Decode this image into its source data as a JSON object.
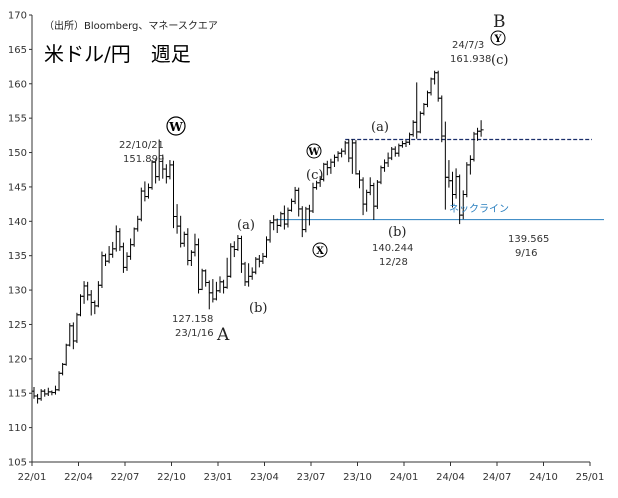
{
  "chart_data": {
    "type": "ohlc",
    "title": "米ドル/円　週足",
    "source": "（出所）Bloomberg、マネースクエア",
    "ylim": [
      105,
      170
    ],
    "yticks": [
      105,
      110,
      115,
      120,
      125,
      130,
      135,
      140,
      145,
      150,
      155,
      160,
      165,
      170
    ],
    "xlim": [
      "22/01",
      "25/01"
    ],
    "xticks": [
      "22/01",
      "22/04",
      "22/07",
      "22/10",
      "23/01",
      "23/04",
      "23/07",
      "23/10",
      "24/01",
      "24/04",
      "24/07",
      "24/10",
      "25/01"
    ],
    "grid": false,
    "series": [
      {
        "values": [
          [
            0,
            115.3,
            115.9,
            114.2,
            114.6
          ],
          [
            1,
            114.6,
            114.9,
            113.5,
            114.2
          ],
          [
            2,
            114.2,
            115.6,
            113.9,
            115.3
          ],
          [
            3,
            115.3,
            115.6,
            114.5,
            114.9
          ],
          [
            4,
            114.9,
            115.8,
            114.6,
            115.2
          ],
          [
            5,
            115.2,
            115.4,
            114.7,
            115.1
          ],
          [
            6,
            115.1,
            116.1,
            114.8,
            115.5
          ],
          [
            7,
            115.5,
            118.2,
            115.3,
            117.9
          ],
          [
            8,
            117.9,
            119.4,
            117.6,
            119.2
          ],
          [
            9,
            119.2,
            122.2,
            119.0,
            122.0
          ],
          [
            10,
            122.0,
            125.2,
            121.8,
            124.8
          ],
          [
            11,
            124.8,
            125.3,
            121.4,
            122.6
          ],
          [
            12,
            122.6,
            126.7,
            122.3,
            126.4
          ],
          [
            13,
            126.4,
            129.4,
            126.2,
            129.1
          ],
          [
            14,
            129.1,
            131.3,
            128.0,
            130.6
          ],
          [
            15,
            130.6,
            131.2,
            128.5,
            129.3
          ],
          [
            16,
            129.3,
            130.0,
            126.3,
            128.2
          ],
          [
            17,
            128.2,
            128.5,
            126.5,
            127.7
          ],
          [
            18,
            127.7,
            131.3,
            127.5,
            130.7
          ],
          [
            19,
            130.7,
            135.6,
            130.3,
            135.0
          ],
          [
            20,
            135.0,
            135.3,
            133.5,
            134.2
          ],
          [
            21,
            134.2,
            136.4,
            133.9,
            135.2
          ],
          [
            22,
            135.2,
            137.0,
            134.7,
            136.0
          ],
          [
            23,
            136.0,
            139.4,
            135.6,
            138.5
          ],
          [
            24,
            138.5,
            139.0,
            135.7,
            136.3
          ],
          [
            25,
            136.3,
            136.9,
            132.5,
            133.3
          ],
          [
            26,
            133.3,
            135.5,
            132.8,
            134.9
          ],
          [
            27,
            134.9,
            137.5,
            134.4,
            136.6
          ],
          [
            28,
            136.6,
            139.1,
            136.3,
            138.9
          ],
          [
            29,
            138.9,
            140.8,
            138.5,
            140.3
          ],
          [
            30,
            140.3,
            144.9,
            140.0,
            144.4
          ],
          [
            31,
            144.4,
            145.8,
            142.9,
            143.6
          ],
          [
            32,
            143.6,
            145.5,
            143.3,
            144.9
          ],
          [
            33,
            144.9,
            148.9,
            144.6,
            148.6
          ],
          [
            34,
            148.6,
            149.0,
            145.5,
            146.5
          ],
          [
            35,
            146.5,
            151.9,
            145.9,
            148.7
          ],
          [
            36,
            148.7,
            149.7,
            146.2,
            147.6
          ],
          [
            37,
            147.6,
            148.3,
            145.5,
            146.5
          ],
          [
            38,
            146.5,
            148.9,
            146.1,
            148.2
          ],
          [
            39,
            148.2,
            148.8,
            139.0,
            140.7
          ],
          [
            40,
            140.7,
            142.5,
            138.2,
            139.3
          ],
          [
            41,
            139.3,
            140.8,
            136.2,
            136.8
          ],
          [
            42,
            136.8,
            138.5,
            136.3,
            138.1
          ],
          [
            43,
            138.1,
            139.0,
            133.6,
            134.3
          ],
          [
            44,
            134.3,
            135.8,
            133.5,
            135.5
          ],
          [
            45,
            135.5,
            138.2,
            134.9,
            136.6
          ],
          [
            46,
            136.6,
            137.5,
            129.5,
            130.1
          ],
          [
            47,
            130.1,
            133.1,
            130.0,
            132.8
          ],
          [
            48,
            132.8,
            133.0,
            130.5,
            131.1
          ],
          [
            49,
            131.1,
            131.4,
            127.2,
            129.6
          ],
          [
            50,
            129.6,
            131.6,
            128.2,
            128.7
          ],
          [
            51,
            128.7,
            131.2,
            128.5,
            129.9
          ],
          [
            52,
            129.9,
            132.0,
            129.6,
            131.2
          ],
          [
            53,
            131.2,
            131.5,
            129.5,
            130.4
          ],
          [
            54,
            130.4,
            134.7,
            130.2,
            132.0
          ],
          [
            55,
            132.0,
            136.8,
            131.8,
            136.3
          ],
          [
            56,
            136.3,
            137.1,
            134.8,
            135.9
          ],
          [
            57,
            135.9,
            138.0,
            135.7,
            137.5
          ],
          [
            58,
            137.5,
            137.9,
            132.5,
            133.8
          ],
          [
            59,
            133.8,
            134.1,
            130.6,
            131.2
          ],
          [
            60,
            131.2,
            133.9,
            130.5,
            132.0
          ],
          [
            61,
            132.0,
            133.3,
            131.5,
            132.6
          ],
          [
            62,
            132.6,
            134.8,
            132.3,
            134.5
          ],
          [
            63,
            134.5,
            135.1,
            133.3,
            134.2
          ],
          [
            64,
            134.2,
            135.4,
            133.8,
            134.9
          ],
          [
            65,
            134.9,
            137.8,
            134.7,
            137.3
          ],
          [
            66,
            137.3,
            140.2,
            136.9,
            139.8
          ],
          [
            67,
            139.8,
            140.9,
            138.7,
            140.2
          ],
          [
            68,
            140.2,
            140.4,
            138.3,
            139.4
          ],
          [
            69,
            139.4,
            141.4,
            139.2,
            141.1
          ],
          [
            70,
            141.1,
            142.3,
            138.8,
            139.6
          ],
          [
            71,
            139.6,
            142.0,
            139.1,
            141.6
          ],
          [
            72,
            141.6,
            143.3,
            141.4,
            142.9
          ],
          [
            73,
            142.9,
            145.0,
            142.5,
            144.5
          ],
          [
            74,
            144.5,
            144.9,
            140.7,
            141.8
          ],
          [
            75,
            141.8,
            142.2,
            137.7,
            138.8
          ],
          [
            76,
            138.8,
            142.1,
            138.4,
            141.8
          ],
          [
            77,
            141.8,
            142.4,
            139.4,
            141.5
          ],
          [
            78,
            141.5,
            145.6,
            141.2,
            144.9
          ],
          [
            79,
            144.9,
            145.9,
            144.6,
            145.6
          ],
          [
            80,
            145.6,
            146.6,
            145.0,
            146.1
          ],
          [
            81,
            146.1,
            148.5,
            145.8,
            148.3
          ],
          [
            82,
            148.3,
            148.8,
            146.7,
            147.8
          ],
          [
            83,
            147.8,
            149.1,
            146.9,
            148.6
          ],
          [
            84,
            148.6,
            149.7,
            147.9,
            149.3
          ],
          [
            85,
            149.3,
            150.2,
            148.7,
            149.9
          ],
          [
            86,
            149.9,
            150.6,
            149.3,
            150.2
          ],
          [
            87,
            150.2,
            151.7,
            149.7,
            151.4
          ],
          [
            88,
            151.4,
            151.9,
            148.6,
            149.2
          ],
          [
            89,
            149.2,
            151.9,
            146.9,
            151.4
          ],
          [
            90,
            151.4,
            151.8,
            146.8,
            146.9
          ],
          [
            91,
            146.9,
            147.4,
            144.8,
            146.0
          ],
          [
            92,
            146.0,
            146.4,
            140.9,
            142.5
          ],
          [
            93,
            142.5,
            144.6,
            141.4,
            144.2
          ],
          [
            94,
            144.2,
            146.4,
            143.8,
            145.2
          ],
          [
            95,
            145.2,
            145.6,
            140.2,
            142.2
          ],
          [
            96,
            142.2,
            146.0,
            141.8,
            145.7
          ],
          [
            97,
            145.7,
            148.1,
            145.4,
            147.8
          ],
          [
            98,
            147.8,
            149.0,
            147.2,
            148.5
          ],
          [
            99,
            148.5,
            150.0,
            147.9,
            149.2
          ],
          [
            100,
            149.2,
            150.8,
            148.9,
            150.5
          ],
          [
            101,
            150.5,
            150.9,
            149.4,
            149.9
          ],
          [
            102,
            149.9,
            151.3,
            149.4,
            151.0
          ],
          [
            103,
            151.0,
            151.7,
            150.7,
            151.3
          ],
          [
            104,
            151.3,
            151.8,
            150.8,
            151.5
          ],
          [
            105,
            151.5,
            152.9,
            151.1,
            152.6
          ],
          [
            106,
            152.6,
            154.7,
            152.3,
            154.4
          ],
          [
            107,
            154.4,
            160.2,
            152.0,
            153.0
          ],
          [
            108,
            153.0,
            156.0,
            152.8,
            155.7
          ],
          [
            109,
            155.7,
            157.2,
            155.4,
            157.0
          ],
          [
            110,
            157.0,
            159.0,
            156.6,
            158.7
          ],
          [
            111,
            158.7,
            160.9,
            158.3,
            160.7
          ],
          [
            112,
            160.7,
            161.9,
            159.9,
            161.6
          ],
          [
            113,
            161.6,
            161.9,
            157.4,
            157.9
          ],
          [
            114,
            157.9,
            158.3,
            151.5,
            152.4
          ],
          [
            115,
            152.4,
            154.5,
            141.7,
            146.4
          ],
          [
            116,
            146.4,
            148.9,
            144.9,
            145.9
          ],
          [
            117,
            145.9,
            147.2,
            142.0,
            143.9
          ],
          [
            118,
            143.9,
            147.7,
            143.3,
            146.5
          ],
          [
            119,
            146.5,
            146.8,
            139.6,
            140.9
          ],
          [
            120,
            140.9,
            144.5,
            140.3,
            143.9
          ],
          [
            121,
            143.9,
            148.6,
            143.5,
            148.2
          ],
          [
            122,
            148.2,
            149.6,
            146.8,
            149.0
          ],
          [
            123,
            149.0,
            153.0,
            148.7,
            152.7
          ],
          [
            124,
            152.7,
            153.6,
            151.7,
            153.1
          ],
          [
            125,
            153.1,
            154.7,
            152.3,
            153.3
          ]
        ]
      }
    ],
    "neckline": {
      "value": 140.244,
      "label": "ネックライン",
      "color": "#2a7fbf"
    },
    "resistance": {
      "value": 151.9,
      "color": "#1a2f6b"
    },
    "annotations": {
      "point_w_date": "22/10/21",
      "point_w_value": "151.899",
      "point_a_value": "127.158",
      "point_a_date": "23/1/16",
      "point_b_value": "161.938",
      "point_b_date": "24/7/3",
      "low_1228_value": "140.244",
      "low_1228_date": "12/28",
      "low_916_value": "139.565",
      "low_916_date": "9/16",
      "label_A": "A",
      "label_B": "B",
      "label_W": "W",
      "label_X": "X",
      "label_Y": "Y",
      "label_W_small": "W",
      "label_a1": "(a)",
      "label_b1": "(b)",
      "label_c1": "(c)",
      "label_a2": "(a)",
      "label_b2": "(b)",
      "label_c2": "(c)"
    }
  }
}
